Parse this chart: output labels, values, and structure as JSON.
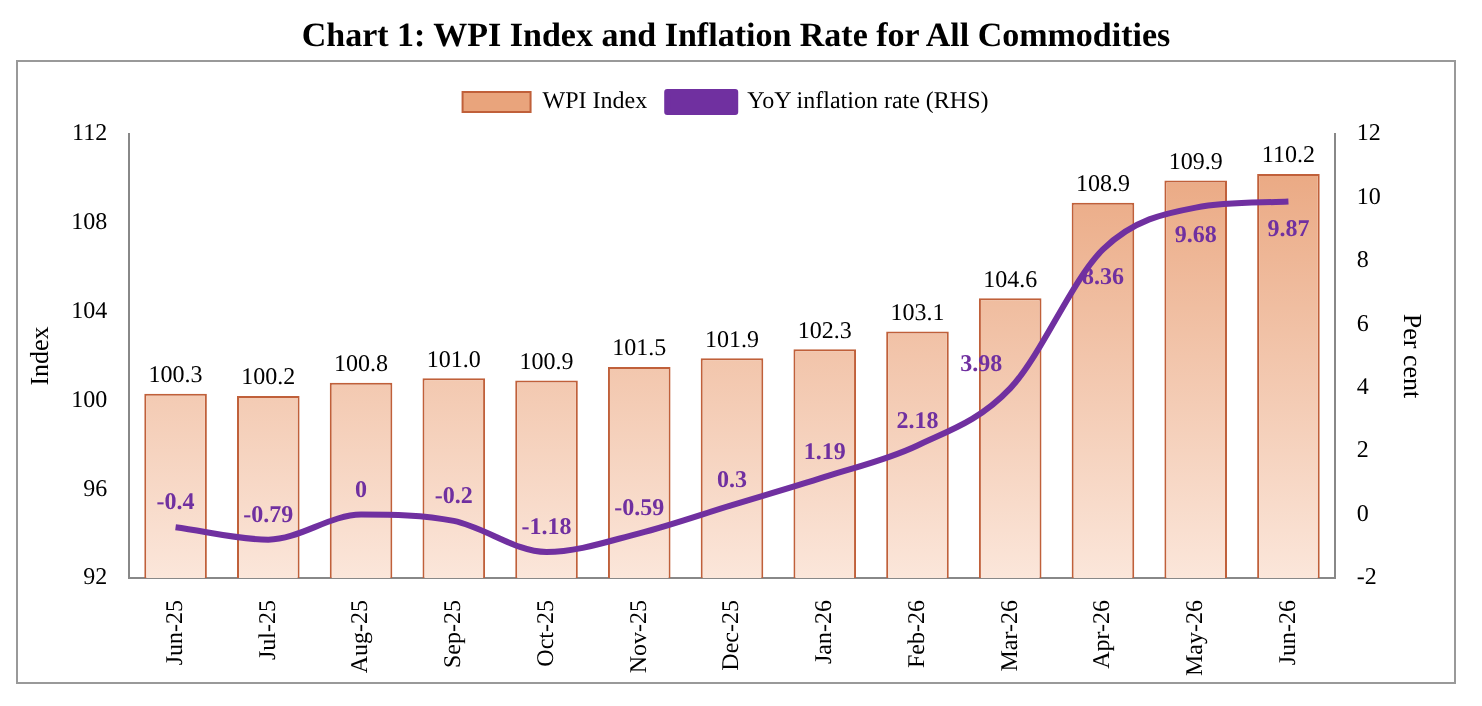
{
  "chart_data": {
    "type": "bar",
    "title": "Chart 1: WPI Index and Inflation Rate for All Commodities",
    "ylabel": "Index",
    "y2label": "Per cent",
    "categories": [
      "Jun-25",
      "Jul-25",
      "Aug-25",
      "Sep-25",
      "Oct-25",
      "Nov-25",
      "Dec-25",
      "Jan-26",
      "Feb-26",
      "Mar-26",
      "Apr-26",
      "May-26",
      "Jun-26"
    ],
    "series": [
      {
        "name": "WPI Index",
        "color": "#e9a47c",
        "values": [
          100.3,
          100.2,
          100.8,
          101.0,
          100.9,
          101.5,
          101.9,
          102.3,
          103.1,
          104.6,
          108.9,
          109.9,
          110.2
        ],
        "value_labels": [
          "100.3",
          "100.2",
          "100.8",
          "101.0",
          "100.9",
          "101.5",
          "101.9",
          "102.3",
          "103.1",
          "104.6",
          "108.9",
          "109.9",
          "110.2"
        ]
      },
      {
        "name": "YoY inflation rate (RHS)",
        "type": "line",
        "axis": "y2",
        "color": "#7030a0",
        "values": [
          -0.4,
          -0.79,
          0,
          -0.2,
          -1.18,
          -0.59,
          0.3,
          1.19,
          2.18,
          3.98,
          8.36,
          9.68,
          9.87
        ],
        "value_labels": [
          "-0.4",
          "-0.79",
          "0",
          "-0.2",
          "-1.18",
          "-0.59",
          "0.3",
          "1.19",
          "2.18",
          "3.98",
          "8.36",
          "9.68",
          "9.87"
        ]
      }
    ],
    "ylim": [
      92,
      112
    ],
    "yticks": [
      92,
      96,
      100,
      104,
      108,
      112
    ],
    "y2lim": [
      -2,
      12
    ],
    "y2ticks": [
      -2,
      0,
      2,
      4,
      6,
      8,
      10,
      12
    ],
    "grid": false,
    "legend": "top",
    "marker": "none",
    "line_style": "solid"
  }
}
